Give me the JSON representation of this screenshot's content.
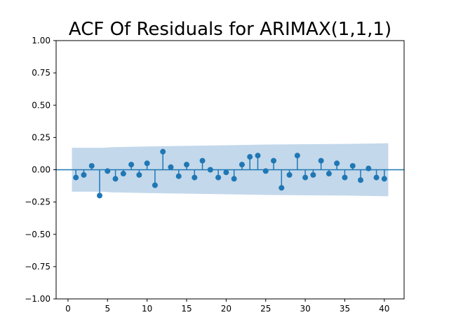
{
  "chart_data": {
    "type": "stem",
    "title": "ACF Of Residuals for ARIMAX(1,1,1)",
    "xlabel": "",
    "ylabel": "",
    "xlim": [
      -1.5,
      42.5
    ],
    "ylim": [
      -1.0,
      1.0
    ],
    "x_ticks": [
      0,
      5,
      10,
      15,
      20,
      25,
      30,
      35,
      40
    ],
    "y_ticks": [
      -1.0,
      -0.75,
      -0.5,
      -0.25,
      0.0,
      0.25,
      0.5,
      0.75,
      1.0
    ],
    "y_tick_labels": [
      "−1.00",
      "−0.75",
      "−0.50",
      "−0.25",
      "0.00",
      "0.25",
      "0.50",
      "0.75",
      "1.00"
    ],
    "x_tick_labels": [
      "0",
      "5",
      "10",
      "15",
      "20",
      "25",
      "30",
      "35",
      "40"
    ],
    "grid": false,
    "colors": {
      "series": "#1f77b4",
      "band": "#c3d8eb",
      "axes": "#000000"
    },
    "lags": [
      1,
      2,
      3,
      4,
      5,
      6,
      7,
      8,
      9,
      10,
      11,
      12,
      13,
      14,
      15,
      16,
      17,
      18,
      19,
      20,
      21,
      22,
      23,
      24,
      25,
      26,
      27,
      28,
      29,
      30,
      31,
      32,
      33,
      34,
      35,
      36,
      37,
      38,
      39,
      40
    ],
    "values": [
      -0.06,
      -0.04,
      0.03,
      -0.2,
      -0.01,
      -0.07,
      -0.03,
      0.04,
      -0.04,
      0.05,
      -0.12,
      0.14,
      0.02,
      -0.05,
      0.04,
      -0.06,
      0.07,
      0.0,
      -0.06,
      -0.02,
      -0.07,
      0.04,
      0.1,
      0.11,
      -0.01,
      0.07,
      -0.14,
      -0.04,
      0.11,
      -0.06,
      -0.04,
      0.07,
      -0.03,
      0.05,
      -0.06,
      0.03,
      -0.08,
      0.01,
      -0.06,
      -0.07
    ],
    "confidence_band": {
      "x": [
        0.5,
        4.5,
        5.5,
        10,
        15,
        20,
        25,
        30,
        35,
        40.5
      ],
      "upper": [
        0.17,
        0.17,
        0.175,
        0.18,
        0.185,
        0.19,
        0.195,
        0.198,
        0.2,
        0.205
      ],
      "lower": [
        -0.17,
        -0.17,
        -0.175,
        -0.18,
        -0.185,
        -0.19,
        -0.195,
        -0.198,
        -0.2,
        -0.205
      ]
    }
  }
}
